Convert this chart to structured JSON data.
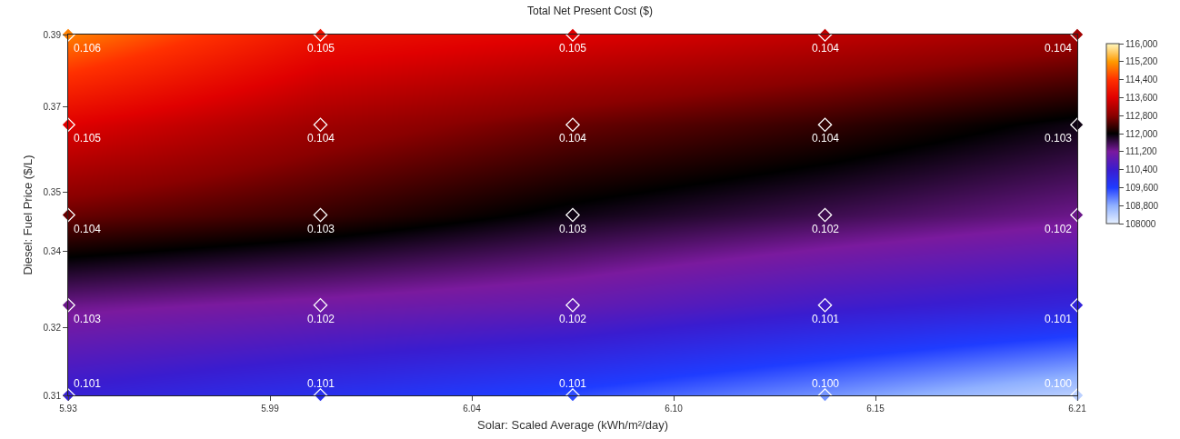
{
  "chart_data": {
    "type": "scatter",
    "title": "Total Net Present Cost ($)",
    "xlabel": "Solar: Scaled Average (kWh/m²/day)",
    "ylabel": "Diesel: Fuel Price ($/L)",
    "x": [
      5.93,
      6.0,
      6.07,
      6.14,
      6.21,
      5.93,
      6.0,
      6.07,
      6.14,
      6.21,
      5.93,
      6.0,
      6.07,
      6.14,
      6.21,
      5.93,
      6.0,
      6.07,
      6.14,
      6.21,
      5.93,
      6.0,
      6.07,
      6.14,
      6.21
    ],
    "values": [
      0.39,
      0.39,
      0.39,
      0.39,
      0.39,
      0.37,
      0.37,
      0.37,
      0.37,
      0.37,
      0.35,
      0.35,
      0.35,
      0.35,
      0.35,
      0.33,
      0.33,
      0.33,
      0.33,
      0.33,
      0.31,
      0.31,
      0.31,
      0.31,
      0.31
    ],
    "cvalues": [
      115000,
      113900,
      113600,
      113300,
      113000,
      113600,
      113000,
      112600,
      112300,
      111900,
      112600,
      112300,
      111900,
      111600,
      111300,
      111300,
      111100,
      110900,
      110500,
      110200,
      110300,
      109900,
      109500,
      109000,
      108400
    ],
    "color": "#ffffff",
    "clim": [
      108000,
      116000
    ],
    "cticks": [
      108000,
      {
        "value": 108800,
        "label": "108,800"
      },
      {
        "value": 109600,
        "label": "109,600"
      },
      {
        "value": 110400,
        "label": "110,400"
      },
      {
        "value": 111200,
        "label": "111,200"
      },
      {
        "value": 112000,
        "label": "112,000"
      },
      {
        "value": 112800,
        "label": "112,800"
      },
      {
        "value": 113600,
        "label": "113,600"
      },
      {
        "value": 114400,
        "label": "114,400"
      },
      {
        "value": 115200,
        "label": "115,200"
      },
      {
        "value": 116000,
        "label": "116,000"
      }
    ],
    "xlim": [
      5.93,
      6.21
    ],
    "xticks": [
      5.93,
      {
        "value": 5.986,
        "label": "5.99"
      },
      {
        "value": 6.042,
        "label": "6.04"
      },
      {
        "value": 6.098,
        "label": "6.10"
      },
      {
        "value": 6.154,
        "label": "6.15"
      },
      6.21
    ],
    "ylim": [
      0.31,
      0.39
    ],
    "yticks": [
      0.31,
      {
        "value": 0.325,
        "label": "0.32"
      },
      {
        "value": 0.342,
        "label": "0.34"
      },
      {
        "value": 0.355,
        "label": "0.35"
      },
      {
        "value": 0.374,
        "label": "0.37"
      },
      0.39
    ],
    "annotations": [
      {
        "text": "0.106",
        "x": 5.93,
        "y": 0.39
      },
      {
        "text": "0.105",
        "x": 6.0,
        "y": 0.39
      },
      {
        "text": "0.105",
        "x": 6.07,
        "y": 0.39
      },
      {
        "text": "0.104",
        "x": 6.14,
        "y": 0.39
      },
      {
        "text": "0.104",
        "x": 6.21,
        "y": 0.39
      },
      {
        "text": "0.105",
        "x": 5.93,
        "y": 0.37
      },
      {
        "text": "0.104",
        "x": 6.0,
        "y": 0.37
      },
      {
        "text": "0.104",
        "x": 6.07,
        "y": 0.37
      },
      {
        "text": "0.104",
        "x": 6.14,
        "y": 0.37
      },
      {
        "text": "0.103",
        "x": 6.21,
        "y": 0.37
      },
      {
        "text": "0.104",
        "x": 5.93,
        "y": 0.35
      },
      {
        "text": "0.103",
        "x": 6.0,
        "y": 0.35
      },
      {
        "text": "0.103",
        "x": 6.07,
        "y": 0.35
      },
      {
        "text": "0.102",
        "x": 6.14,
        "y": 0.35
      },
      {
        "text": "0.102",
        "x": 6.21,
        "y": 0.35
      },
      {
        "text": "0.103",
        "x": 5.93,
        "y": 0.33
      },
      {
        "text": "0.102",
        "x": 6.0,
        "y": 0.33
      },
      {
        "text": "0.102",
        "x": 6.07,
        "y": 0.33
      },
      {
        "text": "0.101",
        "x": 6.14,
        "y": 0.33
      },
      {
        "text": "0.101",
        "x": 6.21,
        "y": 0.33
      },
      {
        "text": "0.101",
        "x": 5.93,
        "y": 0.31
      },
      {
        "text": "0.101",
        "x": 6.0,
        "y": 0.31
      },
      {
        "text": "0.101",
        "x": 6.07,
        "y": 0.31
      },
      {
        "text": "0.100",
        "x": 6.14,
        "y": 0.31
      },
      {
        "text": "0.100",
        "x": 6.21,
        "y": 0.31
      }
    ],
    "marker": "diamond"
  }
}
